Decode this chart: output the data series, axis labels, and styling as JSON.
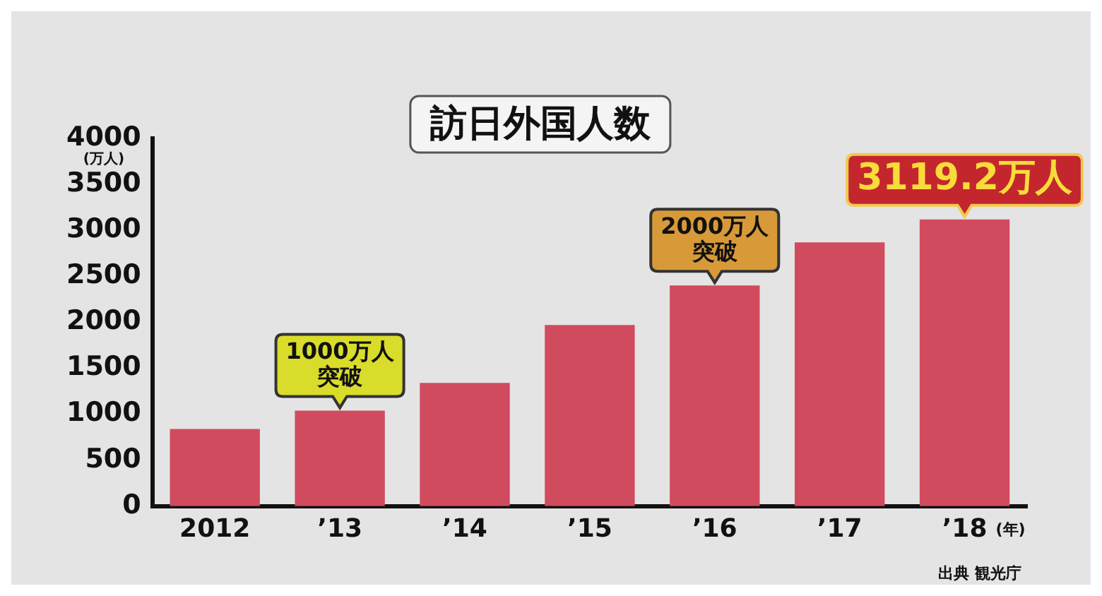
{
  "chart_data": {
    "type": "bar",
    "title": "訪日外国人数",
    "ylabel": "(万人)",
    "xlabel": "(年)",
    "categories": [
      "2012",
      "’13",
      "’14",
      "’15",
      "’16",
      "’17",
      "’18"
    ],
    "values": [
      840,
      1040,
      1340,
      1970,
      2400,
      2870,
      3119.2
    ],
    "value_labels": [
      null,
      null,
      null,
      null,
      null,
      null,
      "3119.2万人"
    ],
    "color": "#d14b5e",
    "ylim": [
      0,
      4000
    ],
    "yticks": [
      0,
      500,
      1000,
      1500,
      2000,
      2500,
      3000,
      3500,
      4000
    ],
    "grid": false,
    "legend": false,
    "annotations": [
      {
        "text": "1000万人突破",
        "x": "’13",
        "y": 1040
      },
      {
        "text": "2000万人突破",
        "x": "’16",
        "y": 2400
      },
      "出典 観光庁"
    ]
  }
}
